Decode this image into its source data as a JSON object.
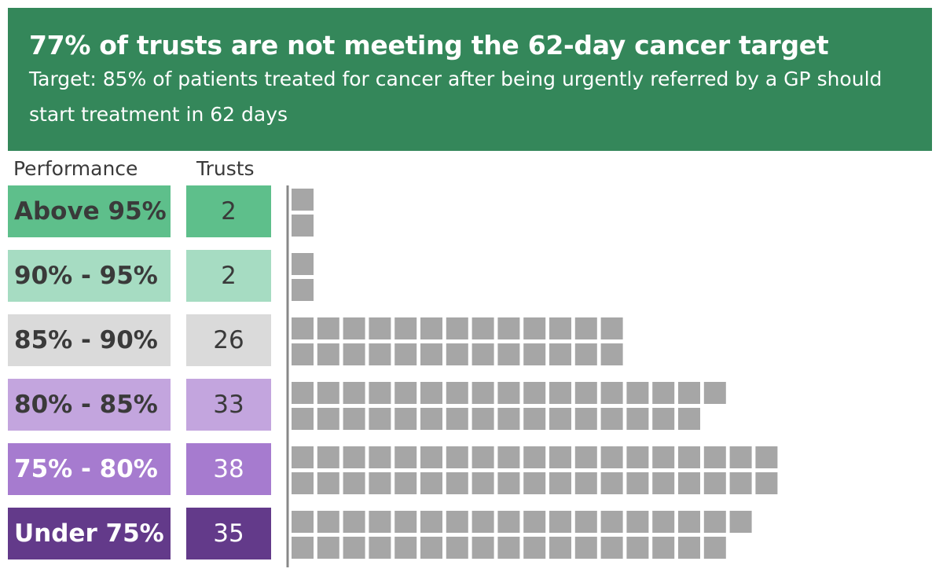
{
  "header": {
    "title": "77% of trusts are not meeting the 62-day cancer target",
    "subtitle": "Target: 85% of patients treated for cancer after being urgently referred by a GP should start treatment in 62 days"
  },
  "columns": {
    "performance": "Performance",
    "trusts": "Trusts"
  },
  "chart_data": {
    "type": "bar",
    "title": "77% of trusts are not meeting the 62-day cancer target",
    "subtitle": "Target: 85% of patients treated for cancer after being urgently referred by a GP should start treatment in 62 days",
    "categories": [
      "Above 95%",
      "90% - 95%",
      "85% - 90%",
      "80% - 85%",
      "75% - 80%",
      "Under 75%"
    ],
    "values": [
      2,
      2,
      26,
      33,
      38,
      35
    ],
    "units_per_column": 2,
    "colors": [
      "#5ebf8b",
      "#a6dcc2",
      "#dadada",
      "#c3a5de",
      "#a67bcf",
      "#633a8a"
    ],
    "label_text_colors": [
      "#3a3a3a",
      "#3a3a3a",
      "#3a3a3a",
      "#3a3a3a",
      "#ffffff",
      "#ffffff"
    ],
    "unit_color": "#a6a6a6",
    "axis_color": "#888888"
  }
}
